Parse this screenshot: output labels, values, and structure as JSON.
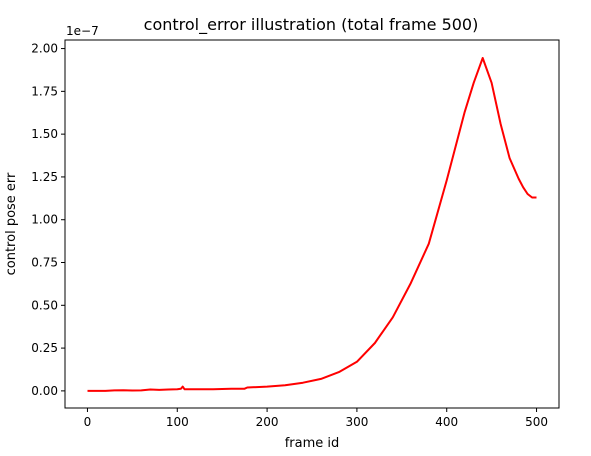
{
  "chart_data": {
    "type": "line",
    "title": "control_error illustration  (total frame 500)",
    "xlabel": "frame id",
    "ylabel": "control pose err",
    "offset_text": "1e−7",
    "xlim": [
      -25,
      525
    ],
    "ylim": [
      -0.1,
      2.05
    ],
    "xticks": [
      0,
      100,
      200,
      300,
      400,
      500
    ],
    "xtick_labels": [
      "0",
      "100",
      "200",
      "300",
      "400",
      "500"
    ],
    "yticks": [
      0.0,
      0.25,
      0.5,
      0.75,
      1.0,
      1.25,
      1.5,
      1.75,
      2.0
    ],
    "ytick_labels": [
      "0.00",
      "0.25",
      "0.50",
      "0.75",
      "1.00",
      "1.25",
      "1.50",
      "1.75",
      "2.00"
    ],
    "grid": false,
    "series": [
      {
        "color": "#ff0000",
        "x": [
          0,
          10,
          20,
          30,
          40,
          50,
          60,
          70,
          80,
          90,
          100,
          104,
          106,
          108,
          110,
          120,
          140,
          160,
          175,
          178,
          200,
          220,
          240,
          260,
          280,
          300,
          320,
          340,
          360,
          380,
          400,
          410,
          420,
          430,
          440,
          450,
          460,
          470,
          480,
          485,
          490,
          495,
          500
        ],
        "y": [
          0.0,
          0.0,
          0.0,
          0.003,
          0.004,
          0.002,
          0.003,
          0.008,
          0.006,
          0.008,
          0.01,
          0.012,
          0.025,
          0.01,
          0.01,
          0.01,
          0.01,
          0.012,
          0.013,
          0.02,
          0.025,
          0.033,
          0.048,
          0.07,
          0.11,
          0.17,
          0.28,
          0.43,
          0.63,
          0.86,
          1.23,
          1.43,
          1.63,
          1.8,
          1.945,
          1.8,
          1.56,
          1.36,
          1.24,
          1.19,
          1.15,
          1.13,
          1.13
        ]
      }
    ]
  }
}
